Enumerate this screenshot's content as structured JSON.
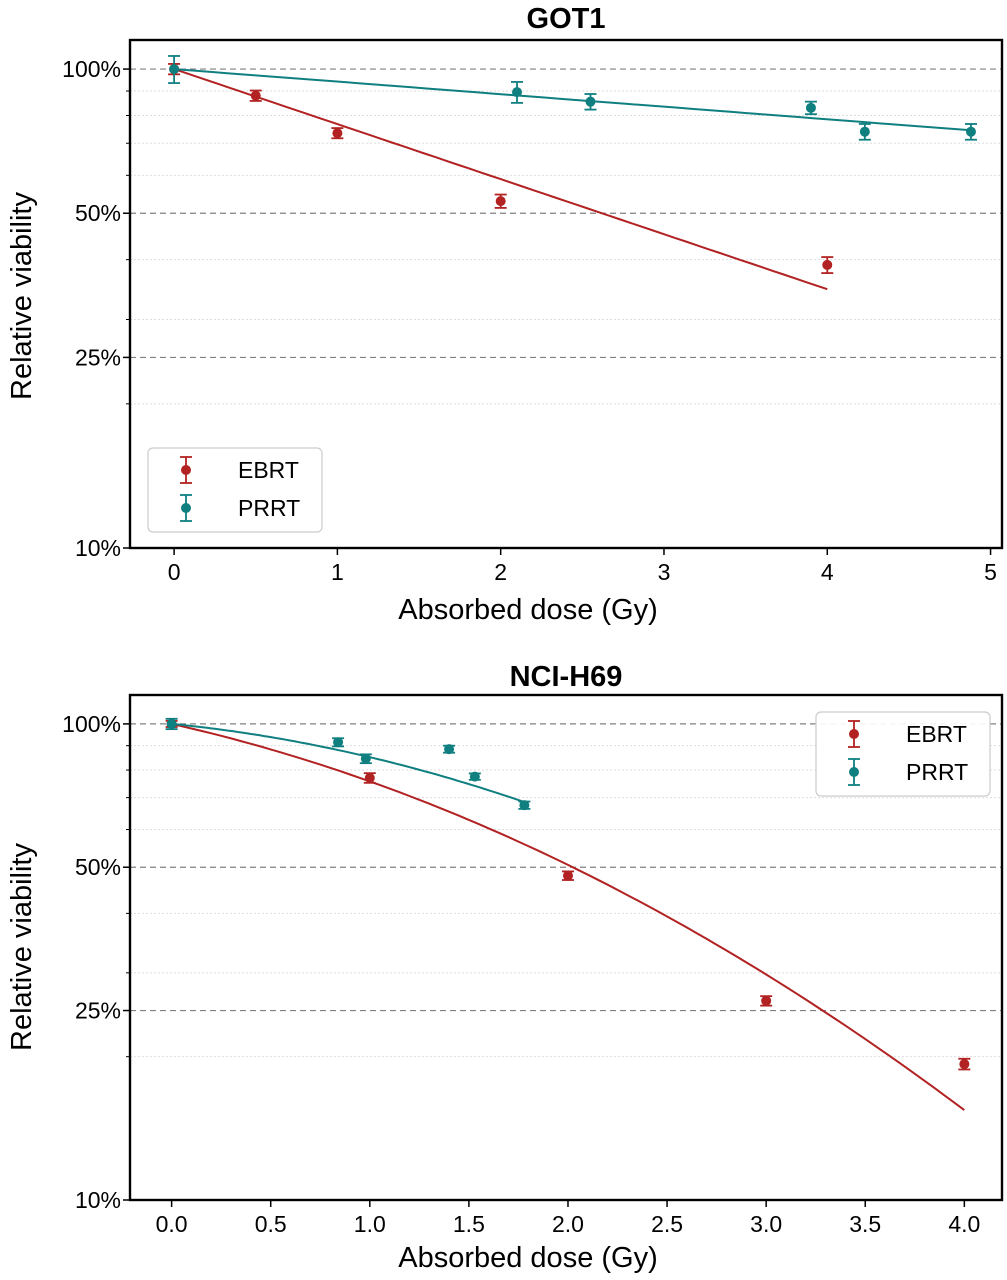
{
  "colors": {
    "ebrt": "#b22222",
    "prrt": "#0f7f80",
    "grid_major": "#808080",
    "grid_minor": "#dddddd"
  },
  "chart_data": [
    {
      "type": "scatter",
      "title": "GOT1",
      "xlabel": "Absorbed dose (Gy)",
      "ylabel": "Relative viability",
      "xlim": [
        -0.27,
        5.07
      ],
      "ylim": [
        10,
        115
      ],
      "yscale": "log",
      "xticks": [
        0,
        1,
        2,
        3,
        4,
        5
      ],
      "xtick_labels": [
        "0",
        "1",
        "2",
        "3",
        "4",
        "5"
      ],
      "yticks": [
        10,
        25,
        50,
        100
      ],
      "ytick_labels": [
        "10%",
        "25%",
        "50%",
        "100%"
      ],
      "grid": "dashed major y-lines at 25/50/100, dotted minor y-lines",
      "legend_position": "lower-left",
      "series": [
        {
          "name": "EBRT",
          "color": "#b22222",
          "points": [
            {
              "x": 0,
              "y": 100,
              "err": 2.5
            },
            {
              "x": 0.5,
              "y": 88,
              "err": 2.2
            },
            {
              "x": 1,
              "y": 73.5,
              "err": 1.8
            },
            {
              "x": 2,
              "y": 53,
              "err": 1.7
            },
            {
              "x": 4,
              "y": 39,
              "err": 1.5
            }
          ],
          "fit": {
            "x": [
              0,
              4
            ],
            "y": [
              100,
              34.7
            ],
            "model": "exponential"
          }
        },
        {
          "name": "PRRT",
          "color": "#0f7f80",
          "points": [
            {
              "x": 0,
              "y": 100,
              "err": 6.5
            },
            {
              "x": 2.1,
              "y": 89.5,
              "err": 4.5
            },
            {
              "x": 2.55,
              "y": 85.5,
              "err": 3.2
            },
            {
              "x": 3.9,
              "y": 83,
              "err": 2.5
            },
            {
              "x": 4.23,
              "y": 74,
              "err": 2.8
            },
            {
              "x": 4.88,
              "y": 74,
              "err": 2.8
            }
          ],
          "fit": {
            "x": [
              0,
              4.88
            ],
            "y": [
              100,
              74.5
            ],
            "model": "exponential"
          }
        }
      ]
    },
    {
      "type": "scatter",
      "title": "NCI-H69",
      "xlabel": "Absorbed dose (Gy)",
      "ylabel": "Relative viability",
      "xlim": [
        -0.21,
        4.19
      ],
      "ylim": [
        10,
        115
      ],
      "yscale": "log",
      "xticks": [
        0,
        0.5,
        1,
        1.5,
        2,
        2.5,
        3,
        3.5,
        4
      ],
      "xtick_labels": [
        "0.0",
        "0.5",
        "1.0",
        "1.5",
        "2.0",
        "2.5",
        "3.0",
        "3.5",
        "4.0"
      ],
      "yticks": [
        10,
        25,
        50,
        100
      ],
      "ytick_labels": [
        "10%",
        "25%",
        "50%",
        "100%"
      ],
      "grid": "dashed major y-lines at 25/50/100, dotted minor y-lines",
      "legend_position": "upper-right",
      "series": [
        {
          "name": "EBRT",
          "color": "#b22222",
          "points": [
            {
              "x": 0,
              "y": 100,
              "err": 1.5
            },
            {
              "x": 1,
              "y": 77,
              "err": 1.8
            },
            {
              "x": 2,
              "y": 48,
              "err": 1.0
            },
            {
              "x": 3,
              "y": 26.2,
              "err": 0.6
            },
            {
              "x": 4,
              "y": 19.3,
              "err": 0.5
            }
          ],
          "fit": {
            "model": "linear-quadratic",
            "alpha": 0.215,
            "beta": 0.063,
            "x": [
              0,
              4
            ]
          }
        },
        {
          "name": "PRRT",
          "color": "#0f7f80",
          "points": [
            {
              "x": 0,
              "y": 100,
              "err": 2.5
            },
            {
              "x": 0.84,
              "y": 91.5,
              "err": 1.8
            },
            {
              "x": 0.98,
              "y": 84.5,
              "err": 1.8
            },
            {
              "x": 1.4,
              "y": 88.5,
              "err": 1.5
            },
            {
              "x": 1.53,
              "y": 77.5,
              "err": 1.2
            },
            {
              "x": 1.78,
              "y": 67.5,
              "err": 1.2
            }
          ],
          "fit": {
            "model": "linear-quadratic",
            "alpha": 0.095,
            "beta": 0.066,
            "x": [
              0,
              1.78
            ]
          }
        }
      ]
    }
  ]
}
